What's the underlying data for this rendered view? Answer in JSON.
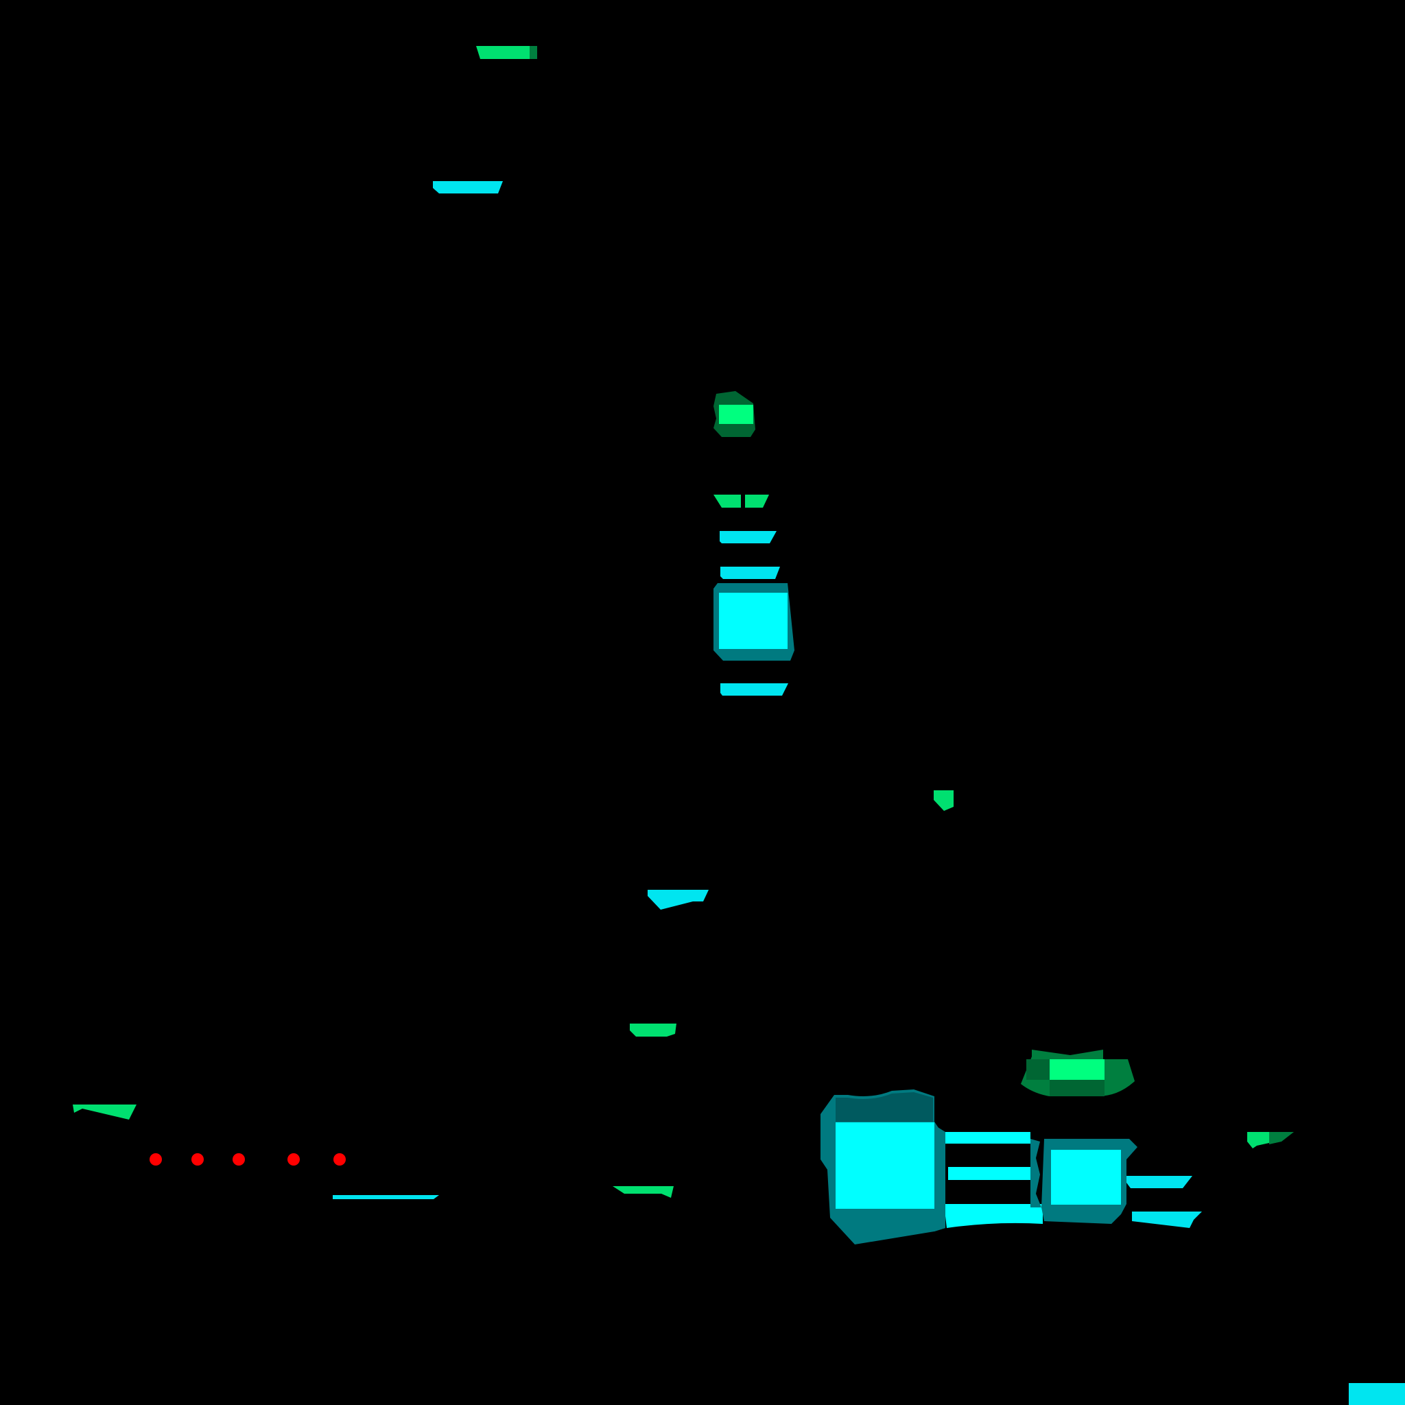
{
  "image": {
    "title": "",
    "background_color": "#000000"
  },
  "palette": {
    "cyan_bright": "#00FFFF",
    "cyan_medium": "#00E5F0",
    "cyan_dark": "#007A80",
    "cyan_darker": "#005A5F",
    "green_bright": "#00FF7F",
    "green_medium": "#00E070",
    "green_dark": "#007F3F",
    "green_darker": "#006633",
    "marker_red": "#FF0000"
  },
  "marker_row": {
    "count": 5,
    "color": "#FF0000"
  }
}
